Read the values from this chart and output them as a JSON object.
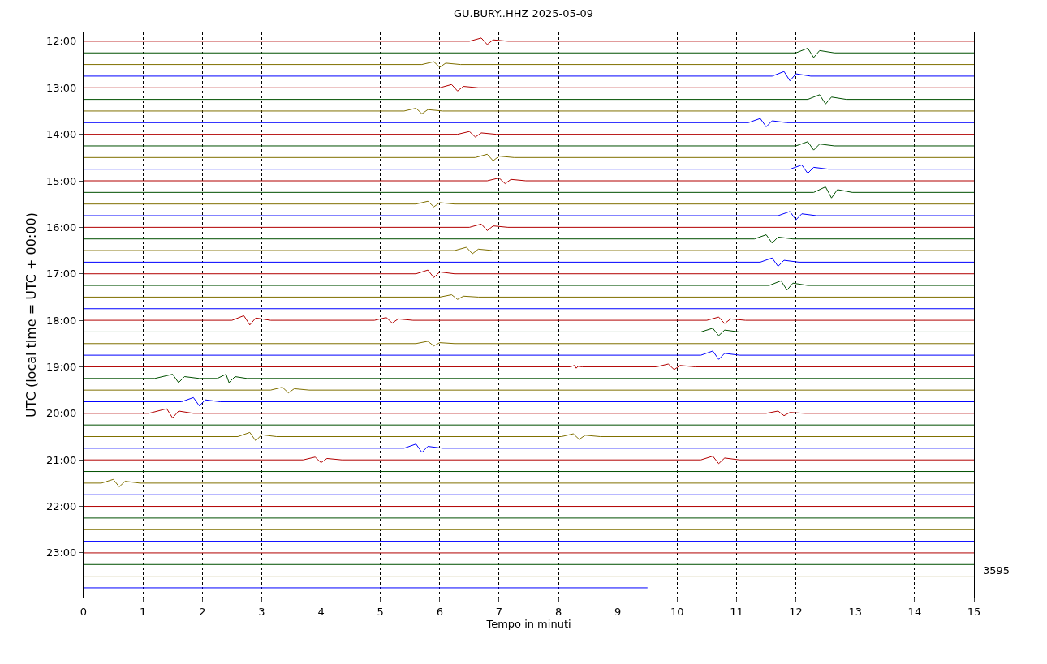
{
  "chart_data": {
    "type": "line",
    "title": "GU.BURY..HHZ 2025-05-09",
    "xlabel": "Tempo in minuti",
    "ylabel": "UTC (local time = UTC + 00:00)",
    "annotations": [
      "3595"
    ],
    "xlim": [
      0,
      15
    ],
    "xticks": [
      0,
      1,
      2,
      3,
      4,
      5,
      6,
      7,
      8,
      9,
      10,
      11,
      12,
      13,
      14,
      15
    ],
    "ylim": [
      23.96,
      11.81
    ],
    "yticks": [
      {
        "value": 12,
        "label": "12:00"
      },
      {
        "value": 13,
        "label": "13:00"
      },
      {
        "value": 14,
        "label": "14:00"
      },
      {
        "value": 15,
        "label": "15:00"
      },
      {
        "value": 16,
        "label": "16:00"
      },
      {
        "value": 17,
        "label": "17:00"
      },
      {
        "value": 18,
        "label": "18:00"
      },
      {
        "value": 19,
        "label": "19:00"
      },
      {
        "value": 20,
        "label": "20:00"
      },
      {
        "value": 21,
        "label": "21:00"
      },
      {
        "value": 22,
        "label": "22:00"
      },
      {
        "value": 23,
        "label": "23:00"
      }
    ],
    "grid": "x",
    "marker": "none",
    "line_style": "solid",
    "series": [
      {
        "color": "#b20000",
        "x": [
          0,
          6.5,
          6.7,
          6.8,
          6.9,
          7.15,
          15
        ],
        "values": [
          12,
          12,
          11.93,
          12.07,
          11.97,
          12,
          12
        ]
      },
      {
        "color": "#005000",
        "x": [
          0,
          12,
          12.2,
          12.3,
          12.4,
          12.65,
          15
        ],
        "values": [
          12.25,
          12.25,
          12.15,
          12.35,
          12.2,
          12.25,
          12.25
        ]
      },
      {
        "color": "#807000",
        "x": [
          0,
          5.7,
          5.9,
          6,
          6.1,
          6.35,
          15
        ],
        "values": [
          12.5,
          12.5,
          12.44,
          12.56,
          12.47,
          12.5,
          12.5
        ]
      },
      {
        "color": "#0000ff",
        "x": [
          0,
          11.6,
          11.8,
          11.9,
          12,
          12.25,
          15
        ],
        "values": [
          12.75,
          12.75,
          12.65,
          12.85,
          12.7,
          12.75,
          12.75
        ]
      },
      {
        "color": "#b20000",
        "x": [
          0,
          6,
          6.2,
          6.3,
          6.4,
          6.65,
          15
        ],
        "values": [
          13,
          13,
          12.93,
          13.07,
          12.97,
          13,
          13
        ]
      },
      {
        "color": "#005000",
        "x": [
          0,
          12.2,
          12.4,
          12.5,
          12.6,
          12.85,
          15
        ],
        "values": [
          13.25,
          13.25,
          13.15,
          13.35,
          13.2,
          13.25,
          13.25
        ]
      },
      {
        "color": "#807000",
        "x": [
          0,
          5.4,
          5.6,
          5.7,
          5.8,
          6.05,
          15
        ],
        "values": [
          13.5,
          13.5,
          13.44,
          13.56,
          13.47,
          13.5,
          13.5
        ]
      },
      {
        "color": "#0000ff",
        "x": [
          0,
          11.2,
          11.4,
          11.5,
          11.6,
          11.85,
          15
        ],
        "values": [
          13.75,
          13.75,
          13.66,
          13.84,
          13.71,
          13.75,
          13.75
        ]
      },
      {
        "color": "#b20000",
        "x": [
          0,
          6.3,
          6.5,
          6.6,
          6.7,
          6.95,
          15
        ],
        "values": [
          14,
          14,
          13.94,
          14.06,
          13.97,
          14,
          14
        ]
      },
      {
        "color": "#005000",
        "x": [
          0,
          12,
          12.2,
          12.3,
          12.4,
          12.65,
          15
        ],
        "values": [
          14.25,
          14.25,
          14.16,
          14.34,
          14.21,
          14.25,
          14.25
        ]
      },
      {
        "color": "#807000",
        "x": [
          0,
          6.6,
          6.8,
          6.9,
          7,
          7.25,
          15
        ],
        "values": [
          14.5,
          14.5,
          14.43,
          14.57,
          14.47,
          14.5,
          14.5
        ]
      },
      {
        "color": "#0000ff",
        "x": [
          0,
          11.9,
          12.1,
          12.2,
          12.3,
          12.55,
          15
        ],
        "values": [
          14.75,
          14.75,
          14.66,
          14.84,
          14.71,
          14.75,
          14.75
        ]
      },
      {
        "color": "#b20000",
        "x": [
          0,
          6.8,
          7,
          7.1,
          7.2,
          7.45,
          15
        ],
        "values": [
          15,
          15,
          14.94,
          15.06,
          14.97,
          15,
          15
        ]
      },
      {
        "color": "#005000",
        "x": [
          0,
          12.3,
          12.5,
          12.6,
          12.7,
          12.95,
          15
        ],
        "values": [
          15.25,
          15.25,
          15.13,
          15.37,
          15.19,
          15.25,
          15.25
        ]
      },
      {
        "color": "#807000",
        "x": [
          0,
          5.6,
          5.8,
          5.9,
          6,
          6.25,
          15
        ],
        "values": [
          15.5,
          15.5,
          15.44,
          15.56,
          15.47,
          15.5,
          15.5
        ]
      },
      {
        "color": "#0000ff",
        "x": [
          0,
          11.7,
          11.9,
          12,
          12.1,
          12.35,
          15
        ],
        "values": [
          15.75,
          15.75,
          15.66,
          15.84,
          15.71,
          15.75,
          15.75
        ]
      },
      {
        "color": "#b20000",
        "x": [
          0,
          6.5,
          6.7,
          6.8,
          6.9,
          7.15,
          15
        ],
        "values": [
          16,
          16,
          15.93,
          16.07,
          15.97,
          16,
          16
        ]
      },
      {
        "color": "#005000",
        "x": [
          0,
          11.3,
          11.5,
          11.6,
          11.7,
          11.95,
          15
        ],
        "values": [
          16.25,
          16.25,
          16.16,
          16.34,
          16.21,
          16.25,
          16.25
        ]
      },
      {
        "color": "#807000",
        "x": [
          0,
          6.25,
          6.45,
          6.55,
          6.65,
          6.9,
          15
        ],
        "values": [
          16.5,
          16.5,
          16.43,
          16.57,
          16.47,
          16.5,
          16.5
        ]
      },
      {
        "color": "#0000ff",
        "x": [
          0,
          11.4,
          11.6,
          11.7,
          11.8,
          12.05,
          15
        ],
        "values": [
          16.75,
          16.75,
          16.66,
          16.84,
          16.71,
          16.75,
          16.75
        ]
      },
      {
        "color": "#b20000",
        "x": [
          0,
          5.6,
          5.8,
          5.9,
          6,
          6.25,
          15
        ],
        "values": [
          17,
          17,
          16.92,
          17.08,
          16.96,
          17,
          17
        ]
      },
      {
        "color": "#005000",
        "x": [
          0,
          11.55,
          11.75,
          11.85,
          11.95,
          12.2,
          15
        ],
        "values": [
          17.25,
          17.25,
          17.15,
          17.35,
          17.2,
          17.25,
          17.25
        ]
      },
      {
        "color": "#807000",
        "x": [
          0,
          6,
          6.2,
          6.3,
          6.4,
          6.65,
          15
        ],
        "values": [
          17.5,
          17.5,
          17.45,
          17.55,
          17.48,
          17.5,
          17.5
        ]
      },
      {
        "color": "#0000ff",
        "x": [
          0,
          15
        ],
        "values": [
          17.75,
          17.75
        ]
      },
      {
        "color": "#b20000",
        "x": [
          0,
          2.5,
          2.7,
          2.8,
          2.9,
          3.15,
          4.9,
          5.1,
          5.2,
          5.3,
          5.55,
          10.5,
          10.7,
          10.8,
          10.9,
          11.15,
          15
        ],
        "values": [
          18,
          18,
          17.9,
          18.1,
          17.95,
          18,
          18,
          17.94,
          18.06,
          17.97,
          18,
          18,
          17.93,
          18.07,
          17.97,
          18,
          18
        ]
      },
      {
        "color": "#005000",
        "x": [
          0,
          10.4,
          10.6,
          10.7,
          10.8,
          11.05,
          15
        ],
        "values": [
          18.25,
          18.25,
          18.17,
          18.33,
          18.21,
          18.25,
          18.25
        ]
      },
      {
        "color": "#807000",
        "x": [
          0,
          5.6,
          5.8,
          5.9,
          6,
          6.25,
          15
        ],
        "values": [
          18.5,
          18.5,
          18.45,
          18.55,
          18.48,
          18.5,
          18.5
        ]
      },
      {
        "color": "#0000ff",
        "x": [
          0,
          10.4,
          10.6,
          10.7,
          10.8,
          11.05,
          15
        ],
        "values": [
          18.75,
          18.75,
          18.66,
          18.84,
          18.71,
          18.75,
          18.75
        ]
      },
      {
        "color": "#b20000",
        "x": [
          0,
          8.2,
          8.27,
          8.3,
          8.33,
          8.4,
          9.65,
          9.85,
          9.95,
          10.05,
          10.3,
          15
        ],
        "values": [
          19,
          19,
          18.97,
          19.03,
          18.99,
          19,
          19,
          18.94,
          19.06,
          18.97,
          19,
          19
        ]
      },
      {
        "color": "#005000",
        "x": [
          0,
          1.2,
          1.5,
          1.6,
          1.7,
          1.95,
          2.25,
          2.4,
          2.45,
          2.55,
          2.75,
          15
        ],
        "values": [
          19.25,
          19.25,
          19.16,
          19.34,
          19.21,
          19.25,
          19.25,
          19.16,
          19.34,
          19.21,
          19.25,
          19.25
        ]
      },
      {
        "color": "#807000",
        "x": [
          0,
          3.15,
          3.35,
          3.45,
          3.55,
          3.8,
          15
        ],
        "values": [
          19.5,
          19.5,
          19.44,
          19.56,
          19.47,
          19.5,
          19.5
        ]
      },
      {
        "color": "#0000ff",
        "x": [
          0,
          1.65,
          1.85,
          1.95,
          2.05,
          2.3,
          15
        ],
        "values": [
          19.75,
          19.75,
          19.66,
          19.84,
          19.71,
          19.75,
          19.75
        ]
      },
      {
        "color": "#b20000",
        "x": [
          0,
          1.1,
          1.4,
          1.5,
          1.6,
          1.85,
          11.5,
          11.7,
          11.8,
          11.9,
          12.15,
          15
        ],
        "values": [
          20,
          20,
          19.9,
          20.1,
          19.95,
          20,
          20,
          19.95,
          20.05,
          19.98,
          20,
          20
        ]
      },
      {
        "color": "#005000",
        "x": [
          0,
          15
        ],
        "values": [
          20.25,
          20.25
        ]
      },
      {
        "color": "#807000",
        "x": [
          0,
          2.6,
          2.8,
          2.9,
          3,
          3.25,
          8.05,
          8.25,
          8.35,
          8.45,
          8.7,
          15
        ],
        "values": [
          20.5,
          20.5,
          20.41,
          20.59,
          20.46,
          20.5,
          20.5,
          20.44,
          20.56,
          20.47,
          20.5,
          20.5
        ]
      },
      {
        "color": "#0000ff",
        "x": [
          0,
          5.4,
          5.6,
          5.7,
          5.8,
          6.05,
          15
        ],
        "values": [
          20.75,
          20.75,
          20.66,
          20.84,
          20.71,
          20.75,
          20.75
        ]
      },
      {
        "color": "#b20000",
        "x": [
          0,
          3.7,
          3.9,
          4,
          4.1,
          4.35,
          10.4,
          10.6,
          10.7,
          10.8,
          11.05,
          15
        ],
        "values": [
          21,
          21,
          20.94,
          21.06,
          20.97,
          21,
          21,
          20.92,
          21.08,
          20.96,
          21,
          21
        ]
      },
      {
        "color": "#005000",
        "x": [
          0,
          15
        ],
        "values": [
          21.25,
          21.25
        ]
      },
      {
        "color": "#807000",
        "x": [
          0,
          0.3,
          0.5,
          0.6,
          0.7,
          0.95,
          15
        ],
        "values": [
          21.5,
          21.5,
          21.42,
          21.58,
          21.46,
          21.5,
          21.5
        ]
      },
      {
        "color": "#0000ff",
        "x": [
          0,
          15
        ],
        "values": [
          21.75,
          21.75
        ]
      },
      {
        "color": "#b20000",
        "x": [
          0,
          15
        ],
        "values": [
          22,
          22
        ]
      },
      {
        "color": "#005000",
        "x": [
          0,
          15
        ],
        "values": [
          22.25,
          22.25
        ]
      },
      {
        "color": "#807000",
        "x": [
          0,
          15
        ],
        "values": [
          22.5,
          22.5
        ]
      },
      {
        "color": "#0000ff",
        "x": [
          0,
          15
        ],
        "values": [
          22.75,
          22.75
        ]
      },
      {
        "color": "#b20000",
        "x": [
          0,
          15
        ],
        "values": [
          23,
          23
        ]
      },
      {
        "color": "#005000",
        "x": [
          0,
          15
        ],
        "values": [
          23.25,
          23.25
        ]
      },
      {
        "color": "#807000",
        "x": [
          0,
          15
        ],
        "values": [
          23.5,
          23.5
        ]
      },
      {
        "color": "#0000ff",
        "x": [
          0,
          9.5
        ],
        "values": [
          23.75,
          23.75
        ]
      }
    ]
  }
}
